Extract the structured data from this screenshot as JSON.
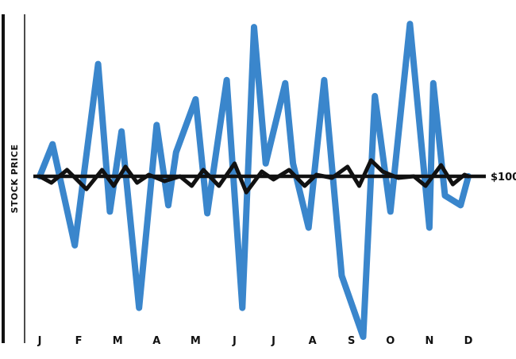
{
  "chart_data": {
    "type": "line",
    "title": "",
    "xlabel": "",
    "ylabel": "STOCK PRICE",
    "categories": [
      "J",
      "F",
      "M",
      "A",
      "M",
      "J",
      "J",
      "A",
      "S",
      "O",
      "N",
      "D"
    ],
    "reference_line": {
      "value": 100,
      "label": "$100"
    },
    "ylim": [
      0,
      200
    ],
    "grid": false,
    "legend": "none",
    "series": [
      {
        "color": "#3a86cc",
        "x": [
          0,
          0.33,
          0.9,
          1.5,
          1.8,
          2.1,
          2.55,
          3.0,
          3.3,
          3.5,
          4.0,
          4.3,
          4.8,
          5.2,
          5.5,
          5.8,
          6.3,
          6.5,
          6.9,
          7.3,
          7.75,
          8.3,
          8.6,
          9.0,
          9.5,
          10.0,
          10.1,
          10.4,
          10.8,
          11.0
        ],
        "values": [
          100,
          120,
          57,
          170,
          78,
          128,
          18,
          132,
          82,
          115,
          148,
          77,
          160,
          18,
          193,
          108,
          158,
          108,
          68,
          160,
          38,
          0,
          150,
          78,
          195,
          68,
          158,
          88,
          82,
          100
        ]
      },
      {
        "color": "#111111",
        "x": [
          0,
          0.3,
          0.7,
          1.2,
          1.6,
          1.9,
          2.2,
          2.5,
          2.8,
          3.2,
          3.6,
          3.9,
          4.2,
          4.6,
          5.0,
          5.3,
          5.7,
          6.0,
          6.4,
          6.8,
          7.1,
          7.5,
          7.9,
          8.2,
          8.5,
          8.8,
          9.2,
          9.6,
          9.9,
          10.3,
          10.6,
          10.9,
          11.0
        ],
        "values": [
          100,
          96,
          104,
          92,
          104,
          94,
          106,
          96,
          101,
          97,
          100,
          94,
          104,
          94,
          108,
          90,
          103,
          98,
          104,
          94,
          101,
          99,
          106,
          94,
          110,
          103,
          99,
          100,
          94,
          107,
          95,
          101,
          100
        ]
      }
    ]
  }
}
